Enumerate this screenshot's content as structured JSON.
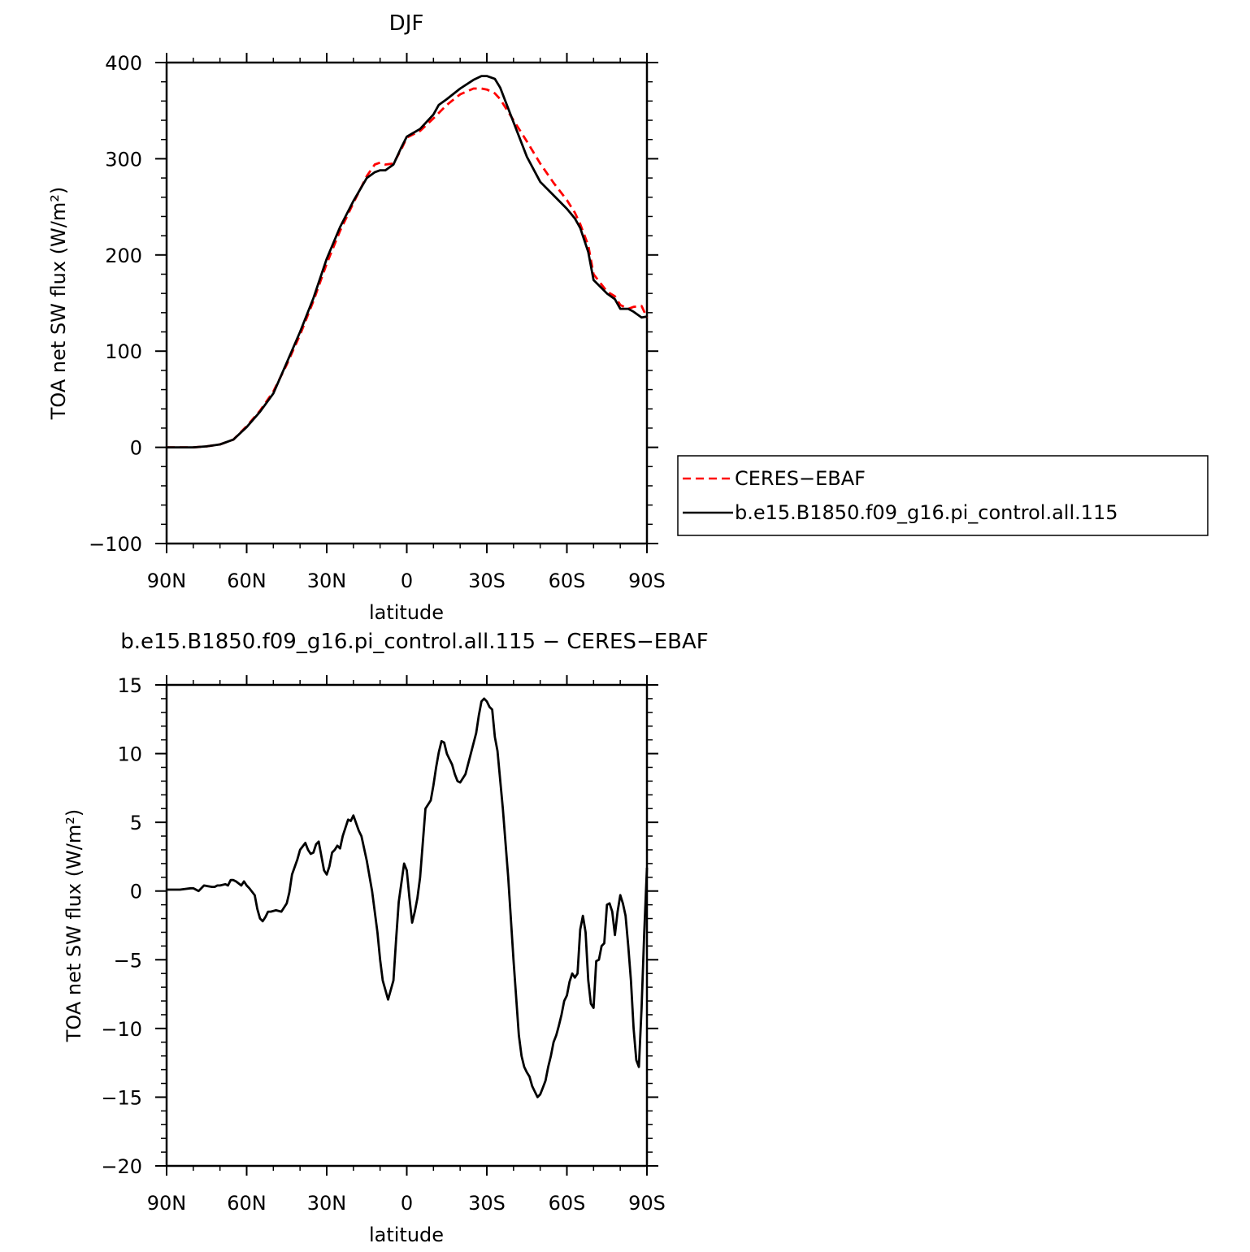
{
  "chart_data": [
    {
      "type": "line",
      "title": "DJF",
      "xlabel": "latitude",
      "ylabel": "TOA net SW flux (W/m²)",
      "xlim": [
        90,
        -90
      ],
      "ylim": [
        -100,
        400
      ],
      "x_ticks": [
        {
          "value": 90,
          "label": "90N"
        },
        {
          "value": 60,
          "label": "60N"
        },
        {
          "value": 30,
          "label": "30N"
        },
        {
          "value": 0,
          "label": "0"
        },
        {
          "value": -30,
          "label": "30S"
        },
        {
          "value": -60,
          "label": "60S"
        },
        {
          "value": -90,
          "label": "90S"
        }
      ],
      "y_ticks": [
        {
          "value": 400,
          "label": "400"
        },
        {
          "value": 300,
          "label": "300"
        },
        {
          "value": 200,
          "label": "200"
        },
        {
          "value": 100,
          "label": "100"
        },
        {
          "value": 0,
          "label": "0"
        },
        {
          "value": -100,
          "label": "−100"
        }
      ],
      "legend_position": "right",
      "series": [
        {
          "name": "CERES−EBAF",
          "color": "#ff0000",
          "dash": "dashed",
          "x": [
            90,
            85,
            80,
            75,
            70,
            65,
            60,
            55,
            50,
            45,
            40,
            35,
            30,
            25,
            20,
            15,
            12,
            10,
            8,
            5,
            2,
            0,
            -5,
            -10,
            -15,
            -20,
            -25,
            -28,
            -30,
            -33,
            -35,
            -40,
            -45,
            -50,
            -55,
            -60,
            -63,
            -65,
            -68,
            -70,
            -75,
            -78,
            -80,
            -83,
            -85,
            -88,
            -90
          ],
          "y": [
            0,
            0,
            0,
            1,
            3,
            8,
            22,
            38,
            58,
            86,
            117,
            152,
            191,
            225,
            254,
            282,
            294,
            296,
            294,
            295,
            310,
            322,
            329,
            342,
            356,
            367,
            373,
            373,
            372,
            368,
            362,
            340,
            318,
            295,
            275,
            257,
            244,
            232,
            210,
            180,
            162,
            157,
            148,
            144,
            146,
            147,
            135
          ]
        },
        {
          "name": "b.e15.B1850.f09_g16.pi_control.all.115",
          "color": "#000000",
          "dash": "solid",
          "x": [
            90,
            85,
            80,
            75,
            70,
            65,
            60,
            55,
            50,
            45,
            40,
            35,
            30,
            25,
            20,
            15,
            12,
            10,
            8,
            5,
            2,
            0,
            -5,
            -10,
            -12,
            -15,
            -20,
            -25,
            -28,
            -30,
            -33,
            -35,
            -40,
            -45,
            -50,
            -55,
            -60,
            -63,
            -65,
            -68,
            -70,
            -75,
            -78,
            -80,
            -83,
            -85,
            -88,
            -90
          ],
          "y": [
            0,
            0,
            0,
            1,
            3,
            8,
            21,
            37,
            56,
            88,
            120,
            155,
            196,
            229,
            256,
            280,
            286,
            288,
            288,
            294,
            312,
            323,
            331,
            346,
            356,
            362,
            373,
            382,
            386,
            386,
            383,
            374,
            338,
            302,
            276,
            262,
            248,
            238,
            228,
            203,
            174,
            160,
            154,
            144,
            144,
            141,
            135,
            136
          ]
        }
      ]
    },
    {
      "type": "line",
      "title": "b.e15.B1850.f09_g16.pi_control.all.115 − CERES−EBAF",
      "xlabel": "latitude",
      "ylabel": "TOA net SW flux (W/m²)",
      "xlim": [
        90,
        -90
      ],
      "ylim": [
        -20,
        15
      ],
      "x_ticks": [
        {
          "value": 90,
          "label": "90N"
        },
        {
          "value": 60,
          "label": "60N"
        },
        {
          "value": 30,
          "label": "30N"
        },
        {
          "value": 0,
          "label": "0"
        },
        {
          "value": -30,
          "label": "30S"
        },
        {
          "value": -60,
          "label": "60S"
        },
        {
          "value": -90,
          "label": "90S"
        }
      ],
      "y_ticks": [
        {
          "value": 15,
          "label": "15"
        },
        {
          "value": 10,
          "label": "10"
        },
        {
          "value": 5,
          "label": "5"
        },
        {
          "value": 0,
          "label": "0"
        },
        {
          "value": -5,
          "label": "−5"
        },
        {
          "value": -10,
          "label": "−10"
        },
        {
          "value": -15,
          "label": "−15"
        },
        {
          "value": -20,
          "label": "−20"
        }
      ],
      "series": [
        {
          "color": "#000000",
          "dash": "solid",
          "x": [
            90,
            85,
            81,
            80,
            79,
            78,
            76,
            73,
            72,
            71,
            70,
            68,
            67,
            66,
            65,
            64,
            62,
            61,
            60,
            59,
            57,
            56,
            55,
            54,
            53,
            52,
            51,
            49,
            47,
            45,
            44,
            43,
            41,
            40,
            38,
            37,
            36,
            35,
            34,
            33,
            31,
            30,
            29,
            28,
            27,
            26,
            25,
            24,
            22,
            21,
            20,
            18,
            17,
            15,
            13,
            11,
            10,
            9,
            7,
            5,
            4,
            3,
            1,
            0,
            -1,
            -2,
            -3,
            -4,
            -5,
            -6,
            -7,
            -9,
            -10,
            -11,
            -12,
            -13,
            -14,
            -15,
            -16,
            -17,
            -18,
            -19,
            -20,
            -22,
            -24,
            -26,
            -27,
            -28,
            -29,
            -30,
            -31,
            -32,
            -33,
            -34,
            -36,
            -38,
            -40,
            -42,
            -43,
            -44,
            -45,
            -46,
            -47,
            -48,
            -49,
            -50,
            -51,
            -52,
            -53,
            -54,
            -55,
            -56,
            -57,
            -58,
            -59,
            -60,
            -61,
            -62,
            -63,
            -64,
            -65,
            -66,
            -67,
            -68,
            -69,
            -70,
            -71,
            -72,
            -73,
            -74,
            -75,
            -76,
            -77,
            -78,
            -79,
            -80,
            -81,
            -82,
            -83,
            -84,
            -85,
            -86,
            -87,
            -88,
            -89,
            -90
          ],
          "y": [
            0.1,
            0.1,
            0.2,
            0.2,
            0.1,
            0.0,
            0.4,
            0.3,
            0.3,
            0.4,
            0.4,
            0.5,
            0.4,
            0.8,
            0.8,
            0.7,
            0.4,
            0.7,
            0.4,
            0.2,
            -0.3,
            -1.3,
            -2.0,
            -2.2,
            -1.9,
            -1.5,
            -1.5,
            -1.4,
            -1.5,
            -0.9,
            -0.1,
            1.2,
            2.3,
            3.0,
            3.5,
            3.0,
            2.7,
            2.8,
            3.4,
            3.6,
            1.5,
            1.2,
            1.8,
            2.8,
            3.0,
            3.3,
            3.1,
            4.0,
            5.2,
            5.1,
            5.5,
            4.4,
            4.0,
            2.2,
            0.0,
            -3.0,
            -5.0,
            -6.5,
            -7.9,
            -6.5,
            -3.5,
            -0.8,
            2.0,
            1.5,
            -0.5,
            -2.3,
            -1.5,
            -0.5,
            1.0,
            3.5,
            6.0,
            6.6,
            7.7,
            9.0,
            10.1,
            10.9,
            10.8,
            10.0,
            9.6,
            9.2,
            8.5,
            8.0,
            7.9,
            8.5,
            10.0,
            11.5,
            12.8,
            13.8,
            14.0,
            13.8,
            13.4,
            13.2,
            11.2,
            10.2,
            6.0,
            1.0,
            -5.0,
            -10.5,
            -12.0,
            -12.8,
            -13.2,
            -13.5,
            -14.2,
            -14.6,
            -15.0,
            -14.8,
            -14.3,
            -13.8,
            -12.8,
            -12.0,
            -11.0,
            -10.5,
            -9.8,
            -9.0,
            -8.0,
            -7.6,
            -6.6,
            -6.0,
            -6.3,
            -6.0,
            -2.8,
            -1.8,
            -3.0,
            -6.5,
            -8.2,
            -8.5,
            -5.1,
            -5.0,
            -4.0,
            -3.8,
            -1.0,
            -0.9,
            -1.5,
            -3.2,
            -1.5,
            -0.3,
            -0.9,
            -1.8,
            -4.0,
            -6.5,
            -10.0,
            -12.3,
            -12.8,
            -8.5,
            -3.0,
            1.7
          ]
        }
      ]
    }
  ]
}
